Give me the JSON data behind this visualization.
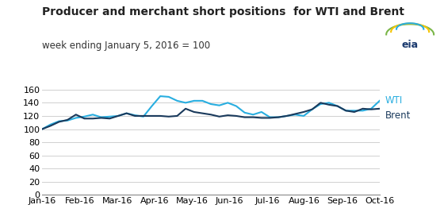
{
  "title": "Producer and merchant short positions  for WTI and Brent",
  "subtitle": "week ending January 5, 2016 = 100",
  "wti_color": "#29aee0",
  "brent_color": "#1a3a5c",
  "ylim": [
    0,
    160
  ],
  "yticks": [
    0,
    20,
    40,
    60,
    80,
    100,
    120,
    140,
    160
  ],
  "xtick_labels": [
    "Jan-16",
    "Feb-16",
    "Mar-16",
    "Apr-16",
    "May-16",
    "Jun-16",
    "Jul-16",
    "Aug-16",
    "Sep-16",
    "Oct-16"
  ],
  "wti_values": [
    100,
    107,
    112,
    113,
    117,
    119,
    122,
    118,
    119,
    120,
    124,
    121,
    119,
    135,
    150,
    149,
    143,
    140,
    143,
    143,
    138,
    136,
    140,
    135,
    125,
    122,
    126,
    118,
    118,
    120,
    122,
    120,
    130,
    138,
    140,
    135,
    128,
    128,
    128,
    131,
    143
  ],
  "brent_values": [
    100,
    105,
    111,
    114,
    122,
    116,
    116,
    117,
    116,
    120,
    124,
    120,
    120,
    120,
    120,
    119,
    120,
    131,
    126,
    124,
    122,
    119,
    121,
    120,
    118,
    118,
    117,
    117,
    118,
    120,
    123,
    126,
    130,
    140,
    137,
    135,
    128,
    126,
    131,
    130,
    131
  ],
  "title_fontsize": 10,
  "subtitle_fontsize": 8.5,
  "tick_fontsize": 8,
  "label_fontsize": 8.5,
  "background_color": "#ffffff",
  "grid_color": "#d0d0d0",
  "line_width": 1.5
}
